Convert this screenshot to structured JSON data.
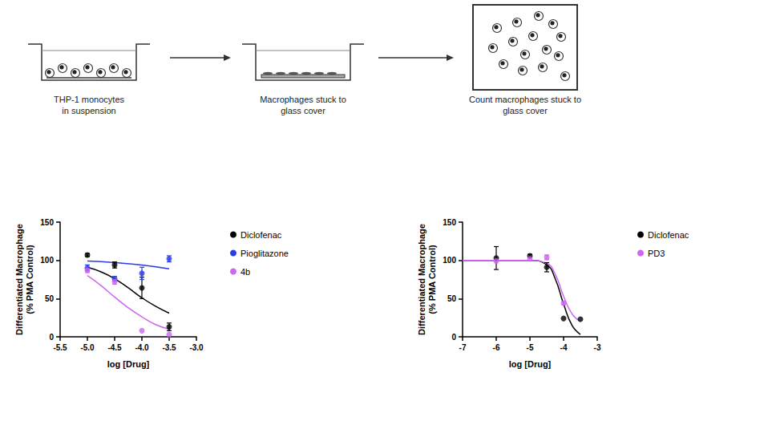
{
  "diagram": {
    "steps": [
      {
        "label": [
          "THP-1 monocytes",
          "in suspension"
        ]
      },
      {
        "label": [
          "Macrophages stuck to",
          "glass cover"
        ]
      },
      {
        "label": [
          "Count macrophages stuck to",
          "glass cover"
        ]
      }
    ]
  },
  "chart_data": [
    {
      "type": "scatter",
      "x_label": "log [Drug]",
      "y_label": [
        "Differentiated Macrophage",
        "(% PMA Control)"
      ],
      "xlim": [
        -5.5,
        -3.0
      ],
      "xticks": [
        {
          "value": -5.5,
          "label": "-5.5"
        },
        {
          "value": -5,
          "label": "-5.0"
        },
        {
          "value": -4.5,
          "label": "-4.5"
        },
        {
          "value": -4,
          "label": "-4.0"
        },
        {
          "value": -3.5,
          "label": "-3.5"
        },
        {
          "value": -3,
          "label": "-3.0"
        }
      ],
      "ylim": [
        0,
        150
      ],
      "yticks": [
        0,
        50,
        100,
        150
      ],
      "grid": false,
      "legend": "right",
      "series": [
        {
          "name": "Diclofenac",
          "color": "#000000",
          "x": [
            -5,
            -4.5,
            -4,
            -3.5
          ],
          "values": [
            107,
            94,
            64,
            13
          ],
          "errors": [
            2,
            4,
            14,
            5
          ],
          "fit": {
            "x": [
              -5,
              -4.75,
              -4.5,
              -4.25,
              -4,
              -3.75,
              -3.5
            ],
            "values": [
              91,
              85,
              76,
              64,
              51,
              40,
              31
            ]
          }
        },
        {
          "name": "Pioglitazone",
          "color": "#2b3de0",
          "x": [
            -5,
            -4.5,
            -4,
            -3.5
          ],
          "values": [
            90,
            76,
            83,
            102
          ],
          "errors": [
            4,
            3,
            8,
            4
          ],
          "fit": {
            "x": [
              -5,
              -4.5,
              -4,
              -3.5
            ],
            "values": [
              99,
              97,
              94,
              89
            ]
          }
        },
        {
          "name": "4b",
          "color": "#cc66f2",
          "x": [
            -5,
            -4.5,
            -4,
            -3.5
          ],
          "values": [
            87,
            72,
            8,
            3
          ],
          "errors": [
            3,
            3,
            null,
            null
          ],
          "fit": {
            "x": [
              -5,
              -4.75,
              -4.5,
              -4.25,
              -4,
              -3.75,
              -3.5
            ],
            "values": [
              80,
              67,
              52,
              38,
              26,
              16,
              10
            ]
          }
        }
      ]
    },
    {
      "type": "scatter",
      "x_label": "log [Drug]",
      "y_label": [
        "Differentiated Macrophage",
        "(% PMA Control)"
      ],
      "xlim": [
        -7,
        -3
      ],
      "xticks": [
        -7,
        -6,
        -5,
        -4,
        -3
      ],
      "ylim": [
        0,
        150
      ],
      "yticks": [
        0,
        50,
        100,
        150
      ],
      "grid": false,
      "legend": "right",
      "series": [
        {
          "name": "Diclofenac",
          "color": "#000000",
          "x": [
            -6,
            -5,
            -4.5,
            -4,
            -3.5
          ],
          "values": [
            103,
            106,
            91,
            24,
            23
          ],
          "errors": [
            15,
            2,
            6,
            null,
            null
          ],
          "fit": {
            "x": [
              -7,
              -6,
              -5,
              -4.5,
              -4.25,
              -4,
              -3.75,
              -3.5
            ],
            "values": [
              100,
              100,
              100,
              94,
              76,
              43,
              15,
              3
            ]
          }
        },
        {
          "name": "PD3",
          "color": "#cc66f2",
          "x": [
            -6,
            -5,
            -4.5,
            -4
          ],
          "values": [
            99,
            102,
            104,
            44
          ],
          "errors": [
            null,
            null,
            3,
            2
          ],
          "fit": {
            "x": [
              -7,
              -6,
              -5,
              -4.5,
              -4.25,
              -4,
              -3.75,
              -3.5
            ],
            "values": [
              100,
              100,
              100,
              96,
              82,
              53,
              30,
              20
            ]
          }
        }
      ]
    }
  ]
}
